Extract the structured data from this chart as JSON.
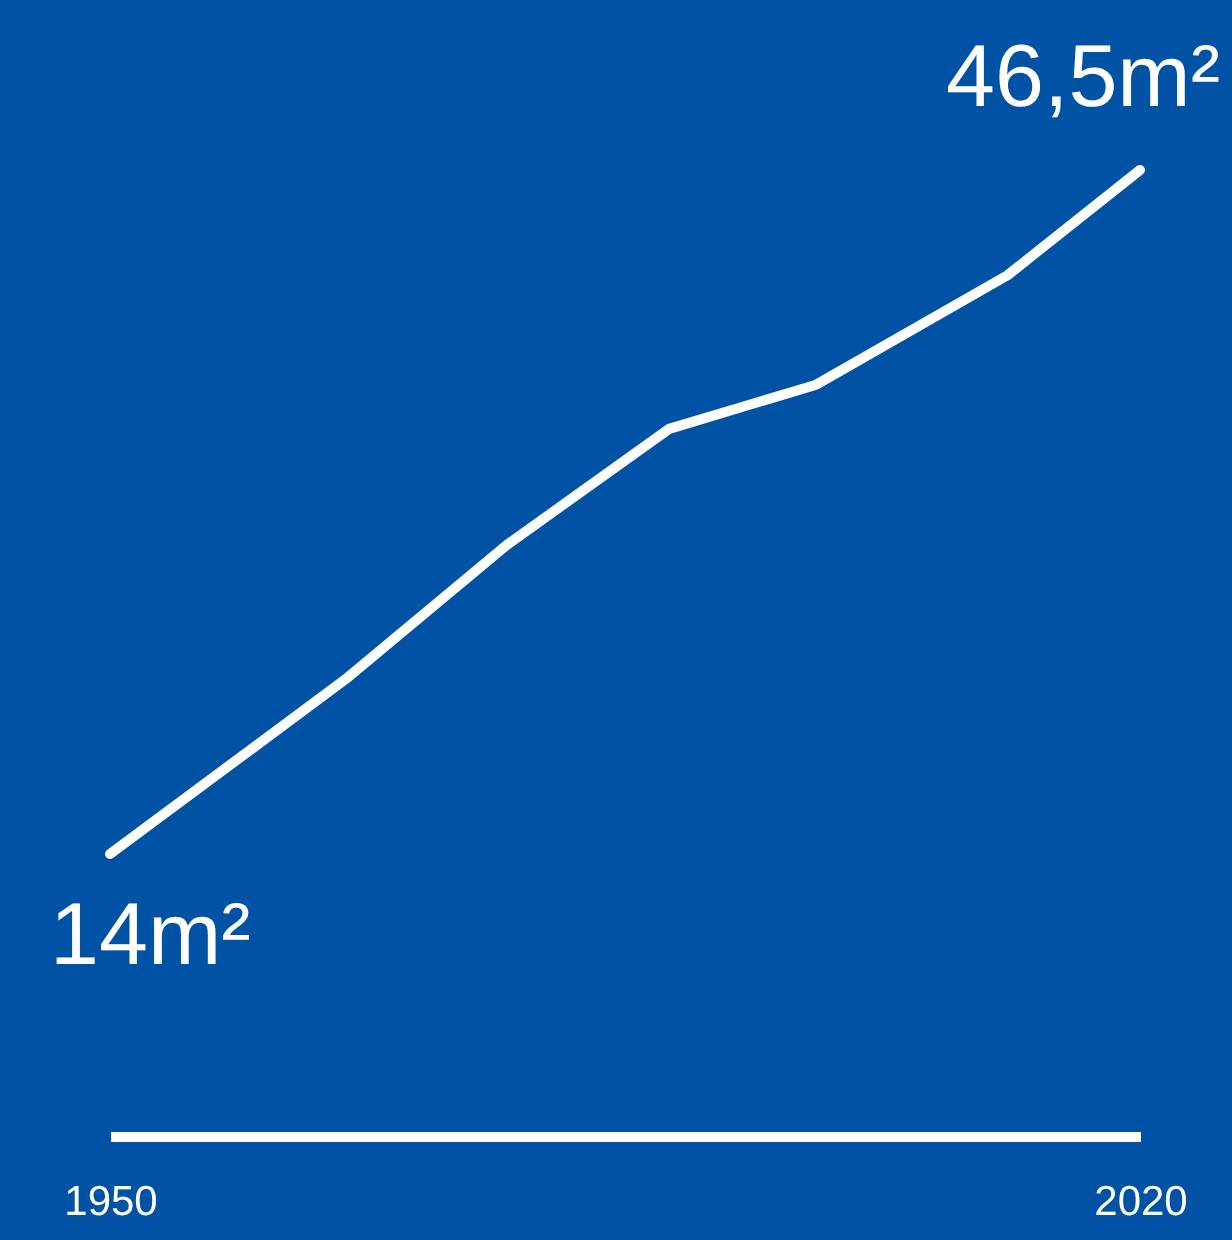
{
  "chart_data": {
    "type": "line",
    "x": [
      1950,
      1966,
      1977,
      1988,
      1998,
      2011,
      2020
    ],
    "series": [
      {
        "color": "#ffffff",
        "values": [
          14,
          22.3,
          28.7,
          34.2,
          36.3,
          41.5,
          46.5
        ],
        "value_labels": [
          "14m²",
          null,
          null,
          null,
          null,
          null,
          "46,5m²"
        ]
      }
    ],
    "xlim": [
      1950,
      2020
    ],
    "xticks": [
      1950,
      2020
    ],
    "tick_labels": "x",
    "grid": false,
    "marker": "none",
    "line_style": "solid"
  }
}
